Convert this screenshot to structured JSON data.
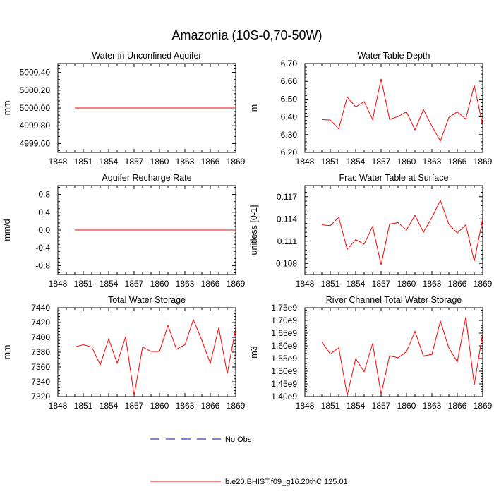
{
  "title": "Amazonia (10S-0,70-50W)",
  "colors": {
    "model": "#ff0000",
    "obs": "#0000ff",
    "axis": "#000000"
  },
  "legend": {
    "obs_label": "No Obs",
    "model_label": "b.e20.BHIST.f09_g16.20thC.125.01",
    "placement": "bottom-center"
  },
  "chart_data": [
    {
      "type": "line",
      "title": "Water in Unconfined Aquifer",
      "ylabel": "mm",
      "xlim": [
        1848,
        1869
      ],
      "ylim": [
        4999.5,
        5000.5
      ],
      "xticks": [
        1848,
        1851,
        1854,
        1857,
        1860,
        1863,
        1866,
        1869
      ],
      "yticks": [
        4999.6,
        4999.8,
        5000.0,
        5000.2,
        5000.4
      ],
      "ytick_labels": [
        "4999.60",
        "4999.80",
        "5000.00",
        "5000.20",
        "5000.40"
      ],
      "x": [
        1850,
        1851,
        1852,
        1853,
        1854,
        1855,
        1856,
        1857,
        1858,
        1859,
        1860,
        1861,
        1862,
        1863,
        1864,
        1865,
        1866,
        1867,
        1868,
        1869
      ],
      "series": [
        {
          "values": [
            5000,
            5000,
            5000,
            5000,
            5000,
            5000,
            5000,
            5000,
            5000,
            5000,
            5000,
            5000,
            5000,
            5000,
            5000,
            5000,
            5000,
            5000,
            5000,
            5000
          ]
        }
      ]
    },
    {
      "type": "line",
      "title": "Water Table Depth",
      "ylabel": "m",
      "xlim": [
        1848,
        1869
      ],
      "ylim": [
        6.2,
        6.7
      ],
      "xticks": [
        1848,
        1851,
        1854,
        1857,
        1860,
        1863,
        1866,
        1869
      ],
      "yticks": [
        6.2,
        6.3,
        6.4,
        6.5,
        6.6,
        6.7
      ],
      "ytick_labels": [
        "6.20",
        "6.30",
        "6.40",
        "6.50",
        "6.60",
        "6.70"
      ],
      "x": [
        1850,
        1851,
        1852,
        1853,
        1854,
        1855,
        1856,
        1857,
        1858,
        1859,
        1860,
        1861,
        1862,
        1863,
        1864,
        1865,
        1866,
        1867,
        1868,
        1869
      ],
      "series": [
        {
          "values": [
            6.385,
            6.382,
            6.332,
            6.512,
            6.456,
            6.486,
            6.385,
            6.614,
            6.386,
            6.402,
            6.428,
            6.326,
            6.441,
            6.348,
            6.264,
            6.396,
            6.428,
            6.388,
            6.578,
            6.35
          ]
        }
      ]
    },
    {
      "type": "line",
      "title": "Aquifer Recharge Rate",
      "ylabel": "mm/d",
      "xlim": [
        1848,
        1869
      ],
      "ylim": [
        -1.0,
        1.0
      ],
      "xticks": [
        1848,
        1851,
        1854,
        1857,
        1860,
        1863,
        1866,
        1869
      ],
      "yticks": [
        -0.8,
        -0.4,
        0.0,
        0.4,
        0.8
      ],
      "ytick_labels": [
        "-0.8",
        "-0.4",
        "0.0",
        "0.4",
        "0.8"
      ],
      "x": [
        1850,
        1851,
        1852,
        1853,
        1854,
        1855,
        1856,
        1857,
        1858,
        1859,
        1860,
        1861,
        1862,
        1863,
        1864,
        1865,
        1866,
        1867,
        1868,
        1869
      ],
      "series": [
        {
          "values": [
            0,
            0,
            0,
            0,
            0,
            0,
            0,
            0,
            0,
            0,
            0,
            0,
            0,
            0,
            0,
            0,
            0,
            0,
            0,
            0
          ]
        }
      ]
    },
    {
      "type": "line",
      "title": "Frac Water Table at Surface",
      "ylabel": "unitless [0-1]",
      "xlim": [
        1848,
        1869
      ],
      "ylim": [
        0.1065,
        0.1185
      ],
      "xticks": [
        1848,
        1851,
        1854,
        1857,
        1860,
        1863,
        1866,
        1869
      ],
      "yticks": [
        0.108,
        0.111,
        0.114,
        0.117
      ],
      "ytick_labels": [
        "0.108",
        "0.111",
        "0.114",
        "0.117"
      ],
      "x": [
        1850,
        1851,
        1852,
        1853,
        1854,
        1855,
        1856,
        1857,
        1858,
        1859,
        1860,
        1861,
        1862,
        1863,
        1864,
        1865,
        1866,
        1867,
        1868,
        1869
      ],
      "series": [
        {
          "values": [
            0.1132,
            0.1131,
            0.1142,
            0.1099,
            0.1112,
            0.1106,
            0.113,
            0.1078,
            0.1133,
            0.1135,
            0.1125,
            0.1145,
            0.1122,
            0.1142,
            0.1165,
            0.1133,
            0.1121,
            0.1132,
            0.1083,
            0.114
          ]
        }
      ]
    },
    {
      "type": "line",
      "title": "Total Water Storage",
      "ylabel": "mm",
      "xlim": [
        1848,
        1869
      ],
      "ylim": [
        7320,
        7440
      ],
      "xticks": [
        1848,
        1851,
        1854,
        1857,
        1860,
        1863,
        1866,
        1869
      ],
      "yticks": [
        7320,
        7340,
        7360,
        7380,
        7400,
        7420,
        7440
      ],
      "ytick_labels": [
        "7320",
        "7340",
        "7360",
        "7380",
        "7400",
        "7420",
        "7440"
      ],
      "x": [
        1850,
        1851,
        1852,
        1853,
        1854,
        1855,
        1856,
        1857,
        1858,
        1859,
        1860,
        1861,
        1862,
        1863,
        1864,
        1865,
        1866,
        1867,
        1868,
        1869
      ],
      "series": [
        {
          "values": [
            7387,
            7390,
            7387,
            7363,
            7398,
            7365,
            7401,
            7321,
            7387,
            7381,
            7381,
            7416,
            7384,
            7390,
            7424,
            7396,
            7365,
            7413,
            7351,
            7412
          ]
        }
      ]
    },
    {
      "type": "line",
      "title": "River Channel Total Water Storage",
      "ylabel": "m3",
      "xlim": [
        1848,
        1869
      ],
      "ylim": [
        1400000000.0,
        1750000000.0
      ],
      "xticks": [
        1848,
        1851,
        1854,
        1857,
        1860,
        1863,
        1866,
        1869
      ],
      "yticks": [
        1400000000.0,
        1450000000.0,
        1500000000.0,
        1550000000.0,
        1600000000.0,
        1650000000.0,
        1700000000.0,
        1750000000.0
      ],
      "ytick_labels": [
        "1.40e9",
        "1.45e9",
        "1.50e9",
        "1.55e9",
        "1.60e9",
        "1.65e9",
        "1.70e9",
        "1.75e9"
      ],
      "x": [
        1850,
        1851,
        1852,
        1853,
        1854,
        1855,
        1856,
        1857,
        1858,
        1859,
        1860,
        1861,
        1862,
        1863,
        1864,
        1865,
        1866,
        1867,
        1868,
        1869
      ],
      "series": [
        {
          "values": [
            1615000000.0,
            1568000000.0,
            1592000000.0,
            1405000000.0,
            1549000000.0,
            1498000000.0,
            1609000000.0,
            1409000000.0,
            1561000000.0,
            1553000000.0,
            1577000000.0,
            1657000000.0,
            1560000000.0,
            1566000000.0,
            1697000000.0,
            1592000000.0,
            1537000000.0,
            1713000000.0,
            1447000000.0,
            1650000000.0
          ]
        }
      ]
    }
  ]
}
